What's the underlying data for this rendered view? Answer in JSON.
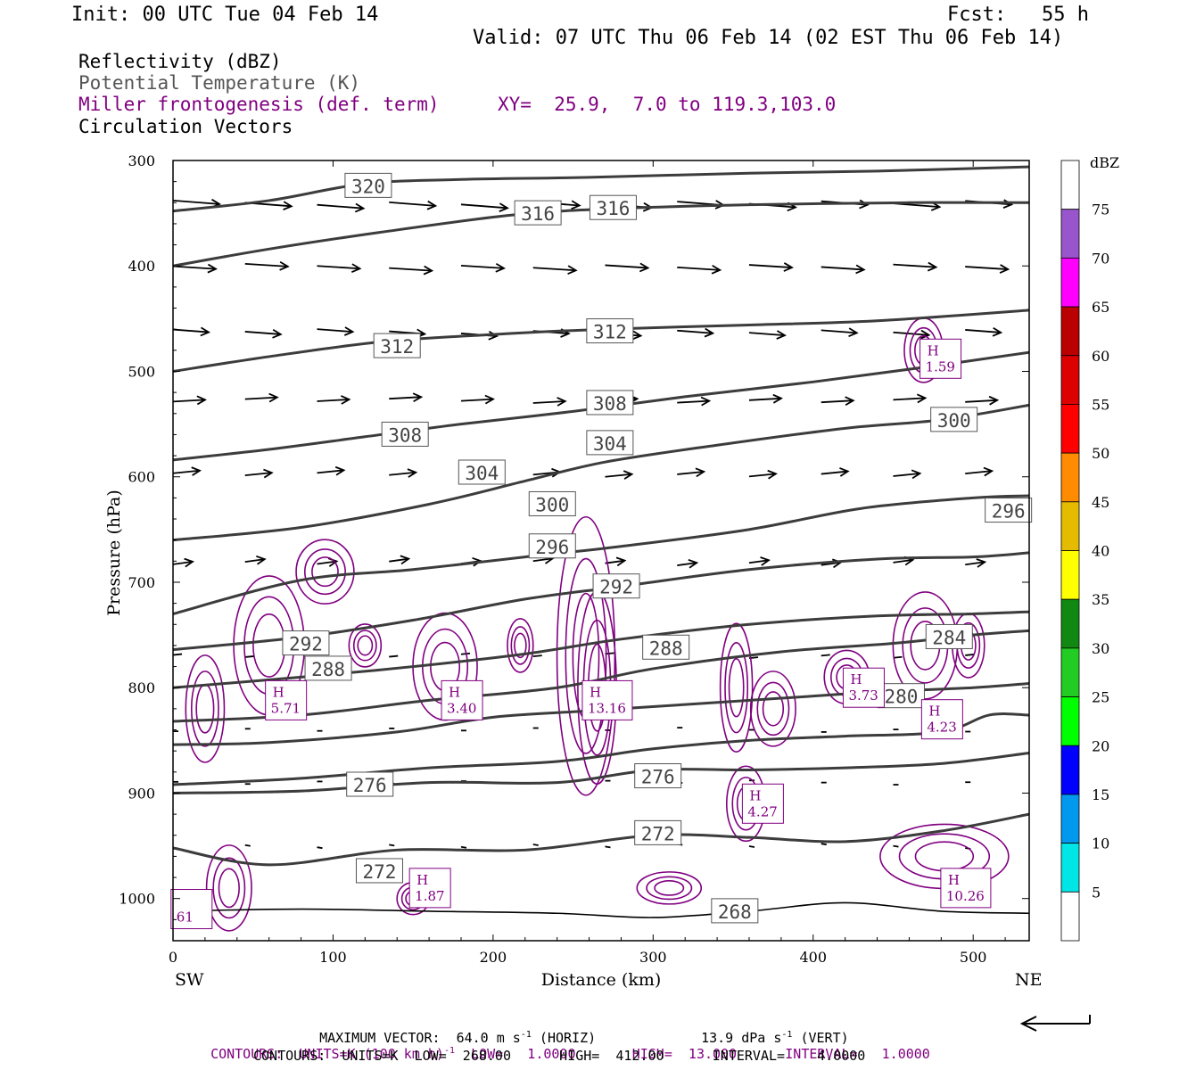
{
  "header": {
    "init": "Init: 00 UTC Tue 04 Feb 14",
    "fcst": "Fcst:   55 h",
    "valid": "Valid: 07 UTC Thu 06 Feb 14 (02 EST Thu 06 Feb 14)"
  },
  "legend": {
    "reflectivity": "Reflectivity (dBZ)",
    "theta": "Potential Temperature (K)",
    "miller": "Miller frontogenesis (def. term)",
    "xy": "XY=  25.9,  7.0 to 119.3,103.0",
    "vectors": "Circulation Vectors"
  },
  "colors": {
    "theta_line": "#3c3c3c",
    "frontogenesis": "#800080",
    "vector": "#000000"
  },
  "chart_data": {
    "type": "cross-section",
    "xlabel": "Distance (km)",
    "ylabel": "Pressure (hPa)",
    "x_ticks": [
      0,
      100,
      200,
      300,
      400,
      500
    ],
    "y_ticks": [
      300,
      400,
      500,
      600,
      700,
      800,
      900,
      1000
    ],
    "xlim": [
      0,
      535
    ],
    "ylim": [
      1040,
      300
    ],
    "left_end_label": "SW",
    "right_end_label": "NE",
    "theta_contours": [
      {
        "k": 320,
        "points": [
          [
            0,
            348
          ],
          [
            60,
            338
          ],
          [
            120,
            322
          ],
          [
            180,
            318
          ],
          [
            260,
            316
          ],
          [
            360,
            312
          ],
          [
            440,
            310
          ],
          [
            535,
            306
          ]
        ],
        "labels": [
          [
            122,
            324
          ]
        ]
      },
      {
        "k": 316,
        "points": [
          [
            0,
            400
          ],
          [
            60,
            384
          ],
          [
            130,
            368
          ],
          [
            210,
            352
          ],
          [
            270,
            346
          ],
          [
            360,
            342
          ],
          [
            460,
            340
          ],
          [
            535,
            340
          ]
        ],
        "labels": [
          [
            228,
            350
          ],
          [
            275,
            345
          ]
        ]
      },
      {
        "k": 312,
        "points": [
          [
            0,
            500
          ],
          [
            60,
            486
          ],
          [
            130,
            472
          ],
          [
            200,
            465
          ],
          [
            270,
            460
          ],
          [
            360,
            456
          ],
          [
            440,
            452
          ],
          [
            535,
            442
          ]
        ],
        "labels": [
          [
            140,
            476
          ],
          [
            273,
            462
          ]
        ]
      },
      {
        "k": 308,
        "points": [
          [
            0,
            584
          ],
          [
            60,
            574
          ],
          [
            120,
            562
          ],
          [
            180,
            550
          ],
          [
            250,
            538
          ],
          [
            320,
            524
          ],
          [
            400,
            510
          ],
          [
            470,
            496
          ],
          [
            535,
            482
          ]
        ],
        "labels": [
          [
            145,
            560
          ],
          [
            273,
            530
          ]
        ]
      },
      {
        "k": 304,
        "points": [
          [
            0,
            660
          ],
          [
            80,
            648
          ],
          [
            160,
            626
          ],
          [
            220,
            604
          ],
          [
            270,
            586
          ],
          [
            340,
            570
          ],
          [
            420,
            554
          ],
          [
            480,
            546
          ],
          [
            535,
            532
          ]
        ],
        "labels": [
          [
            193,
            596
          ],
          [
            273,
            568
          ]
        ]
      },
      {
        "k": 300,
        "points": [
          [
            0,
            730
          ],
          [
            80,
            698
          ],
          [
            150,
            688
          ],
          [
            220,
            676
          ],
          [
            280,
            666
          ],
          [
            360,
            650
          ],
          [
            430,
            630
          ],
          [
            500,
            620
          ],
          [
            535,
            618
          ]
        ],
        "labels": [
          [
            237,
            626
          ],
          [
            488,
            546
          ]
        ]
      },
      {
        "k": 296,
        "points": [
          [
            0,
            764
          ],
          [
            80,
            752
          ],
          [
            150,
            736
          ],
          [
            220,
            716
          ],
          [
            280,
            704
          ],
          [
            360,
            688
          ],
          [
            440,
            678
          ],
          [
            500,
            676
          ],
          [
            535,
            672
          ]
        ],
        "labels": [
          [
            237,
            666
          ],
          [
            522,
            632
          ]
        ]
      },
      {
        "k": 292,
        "points": [
          [
            0,
            800
          ],
          [
            80,
            790
          ],
          [
            150,
            780
          ],
          [
            220,
            768
          ],
          [
            280,
            754
          ],
          [
            360,
            740
          ],
          [
            440,
            732
          ],
          [
            500,
            730
          ],
          [
            535,
            728
          ]
        ],
        "labels": [
          [
            83,
            758
          ],
          [
            277,
            704
          ]
        ]
      },
      {
        "k": 288,
        "points": [
          [
            0,
            832
          ],
          [
            80,
            826
          ],
          [
            160,
            812
          ],
          [
            240,
            800
          ],
          [
            300,
            782
          ],
          [
            380,
            766
          ],
          [
            450,
            758
          ],
          [
            500,
            750
          ],
          [
            535,
            746
          ]
        ],
        "labels": [
          [
            97,
            782
          ],
          [
            308,
            762
          ]
        ]
      },
      {
        "k": 284,
        "points": [
          [
            0,
            854
          ],
          [
            60,
            852
          ],
          [
            140,
            842
          ],
          [
            200,
            828
          ],
          [
            260,
            822
          ],
          [
            320,
            816
          ],
          [
            380,
            810
          ],
          [
            440,
            804
          ],
          [
            500,
            800
          ],
          [
            535,
            796
          ]
        ],
        "labels": [
          [
            485,
            752
          ]
        ]
      },
      {
        "k": 280,
        "points": [
          [
            0,
            892
          ],
          [
            80,
            886
          ],
          [
            160,
            876
          ],
          [
            240,
            870
          ],
          [
            300,
            858
          ],
          [
            360,
            850
          ],
          [
            420,
            846
          ],
          [
            480,
            842
          ],
          [
            510,
            826
          ],
          [
            535,
            826
          ]
        ],
        "labels": [
          [
            455,
            808
          ]
        ]
      },
      {
        "k": 276,
        "points": [
          [
            0,
            900
          ],
          [
            80,
            898
          ],
          [
            160,
            890
          ],
          [
            240,
            890
          ],
          [
            300,
            878
          ],
          [
            360,
            878
          ],
          [
            420,
            876
          ],
          [
            480,
            872
          ],
          [
            535,
            862
          ]
        ],
        "labels": [
          [
            123,
            892
          ],
          [
            303,
            884
          ]
        ]
      },
      {
        "k": 272,
        "points": [
          [
            0,
            952
          ],
          [
            60,
            968
          ],
          [
            140,
            954
          ],
          [
            220,
            954
          ],
          [
            300,
            940
          ],
          [
            360,
            942
          ],
          [
            420,
            946
          ],
          [
            480,
            936
          ],
          [
            535,
            920
          ]
        ],
        "labels": [
          [
            129,
            974
          ],
          [
            303,
            938
          ]
        ]
      },
      {
        "k": 268,
        "points": [
          [
            0,
            1012
          ],
          [
            80,
            1010
          ],
          [
            160,
            1012
          ],
          [
            240,
            1014
          ],
          [
            300,
            1018
          ],
          [
            360,
            1012
          ],
          [
            420,
            1004
          ],
          [
            480,
            1012
          ],
          [
            535,
            1014
          ]
        ],
        "labels": [
          [
            351,
            1012
          ]
        ]
      }
    ],
    "frontogenesis_maxima": [
      {
        "label": "H",
        "value": "1.59",
        "x": 469,
        "p": 488
      },
      {
        "label": "H",
        "value": "5.71",
        "x": 60,
        "p": 812
      },
      {
        "label": "H",
        "value": "3.40",
        "x": 170,
        "p": 812
      },
      {
        "label": "H",
        "value": "13.16",
        "x": 258,
        "p": 812
      },
      {
        "label": "H",
        "value": "3.73",
        "x": 421,
        "p": 800
      },
      {
        "label": "H",
        "value": "4.23",
        "x": 470,
        "p": 830
      },
      {
        "label": "H",
        "value": "4.27",
        "x": 358,
        "p": 910
      },
      {
        "label": "H",
        "value": "1.87",
        "x": 150,
        "p": 990
      },
      {
        "label": "H",
        "value": "10.26",
        "x": 482,
        "p": 990
      },
      {
        "label": "",
        "value": "61",
        "x": 1,
        "p": 1010
      }
    ],
    "colorbar": {
      "title": "dBZ",
      "levels": [
        5,
        10,
        15,
        20,
        25,
        30,
        35,
        40,
        45,
        50,
        55,
        60,
        65,
        70,
        75
      ],
      "colors": [
        "#00e5e5",
        "#0099ee",
        "#0000ff",
        "#00ff00",
        "#22cc22",
        "#118811",
        "#ffff00",
        "#e5bb00",
        "#ff8c00",
        "#ff0000",
        "#dd0000",
        "#bb0000",
        "#ff00ff",
        "#9955cc",
        "#ffffff"
      ]
    }
  },
  "footer": {
    "max_vector_a": "MAXIMUM VECTOR:  64.0 m s",
    "max_vector_a_sup": "-1",
    "max_vector_b": " (HORIZ)",
    "max_vector_c": "13.9 dPa s",
    "max_vector_c_sup": "-1",
    "max_vector_d": " (VERT)",
    "contours1_a": "CONTOURS:  UNITS=K (100 km h)",
    "contours1_sup": "-1",
    "contours1_b": "  LOW=   1.0000       HIGH=  13.000      INTERVAL=   1.0000",
    "contours2": "CONTOURS:  UNITS=K  LOW=  268.00      HIGH=  412.00      INTERVAL=    4.0000"
  }
}
